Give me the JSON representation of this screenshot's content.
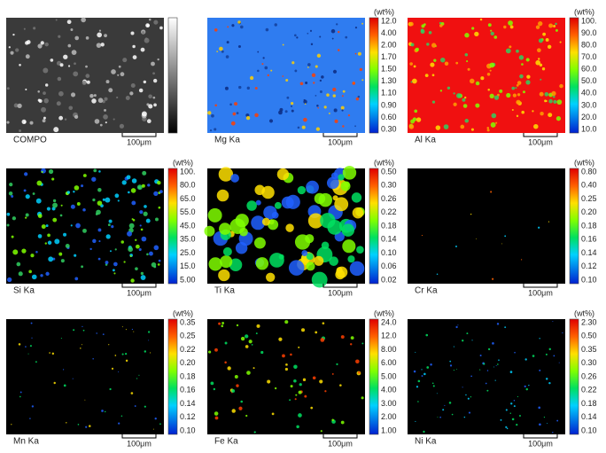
{
  "panels": [
    {
      "label": "COMPO",
      "scale": "100μm"
    },
    {
      "label": "Mg Ka",
      "unit": "(wt%)",
      "ticks": [
        "12.0",
        "4.00",
        "2.00",
        "1.70",
        "1.50",
        "1.30",
        "1.10",
        "0.90",
        "0.60",
        "0.30"
      ],
      "scale": "100μm"
    },
    {
      "label": "Al Ka",
      "unit": "(wt%)",
      "ticks": [
        "100.",
        "90.0",
        "80.0",
        "70.0",
        "60.0",
        "50.0",
        "40.0",
        "30.0",
        "20.0",
        "10.0"
      ],
      "scale": "100μm"
    },
    {
      "label": "Si Ka",
      "unit": "(wt%)",
      "ticks": [
        "100.",
        "80.0",
        "65.0",
        "55.0",
        "45.0",
        "35.0",
        "25.0",
        "15.0",
        "5.00"
      ],
      "scale": "100μm"
    },
    {
      "label": "Ti Ka",
      "unit": "(wt%)",
      "ticks": [
        "0.50",
        "0.30",
        "0.26",
        "0.22",
        "0.18",
        "0.14",
        "0.10",
        "0.06",
        "0.02"
      ],
      "scale": "100μm"
    },
    {
      "label": "Cr Ka",
      "unit": "(wt%)",
      "ticks": [
        "0.80",
        "0.40",
        "0.25",
        "0.20",
        "0.18",
        "0.16",
        "0.14",
        "0.12",
        "0.10"
      ],
      "scale": "100μm"
    },
    {
      "label": "Mn Ka",
      "unit": "(wt%)",
      "ticks": [
        "0.35",
        "0.25",
        "0.22",
        "0.20",
        "0.18",
        "0.16",
        "0.14",
        "0.12",
        "0.10"
      ],
      "scale": "100μm"
    },
    {
      "label": "Fe Ka",
      "unit": "(wt%)",
      "ticks": [
        "24.0",
        "12.0",
        "8.00",
        "6.00",
        "5.00",
        "4.00",
        "3.00",
        "2.00",
        "1.00"
      ],
      "scale": "100μm"
    },
    {
      "label": "Ni Ka",
      "unit": "(wt%)",
      "ticks": [
        "2.30",
        "0.50",
        "0.35",
        "0.30",
        "0.26",
        "0.22",
        "0.18",
        "0.14",
        "0.10"
      ],
      "scale": "100μm"
    }
  ]
}
